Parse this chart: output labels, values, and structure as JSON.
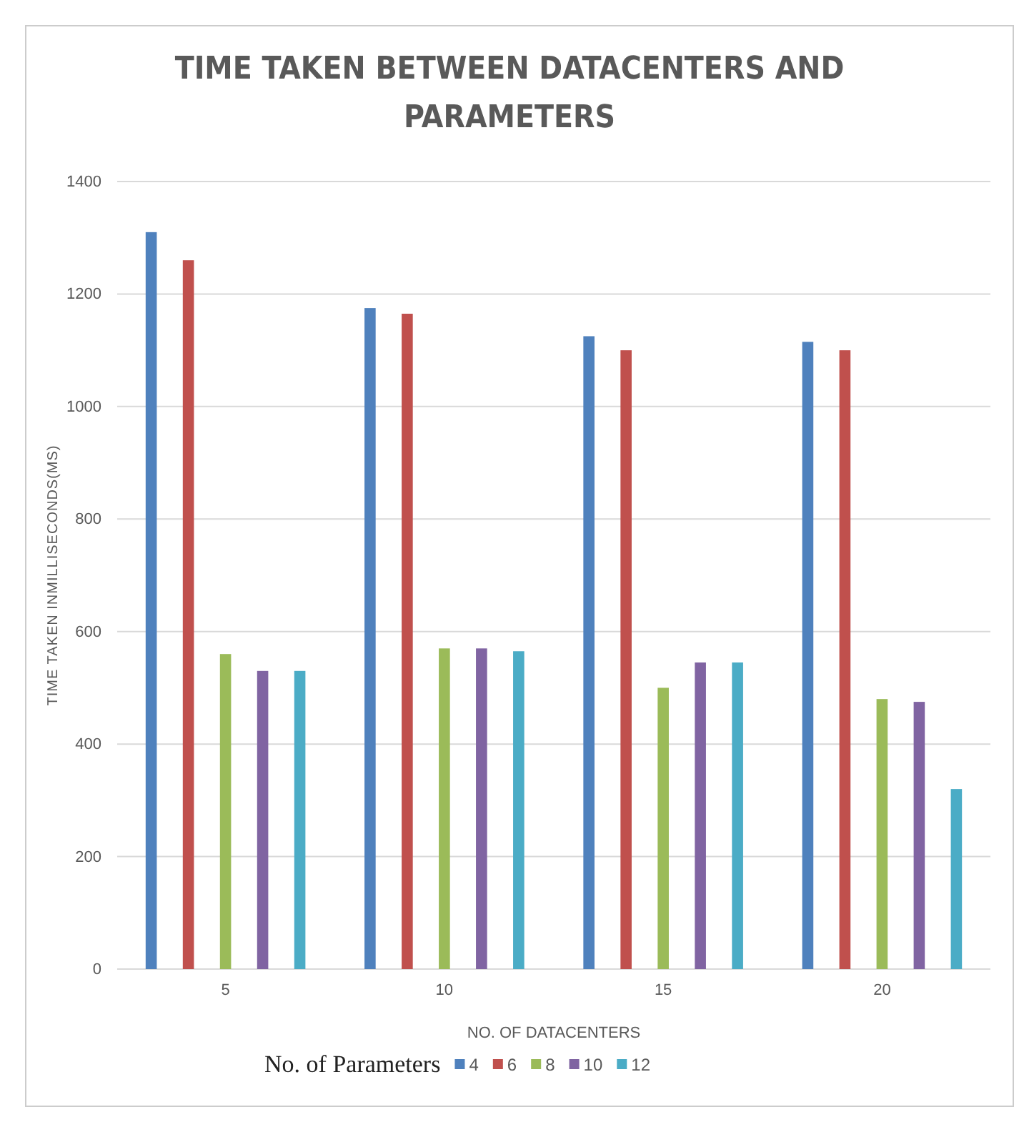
{
  "chart_data": {
    "type": "bar",
    "title": "TIME TAKEN BETWEEN DATACENTERS AND PARAMETERS",
    "xlabel": "NO. OF DATACENTERS",
    "ylabel": "TIME TAKEN INMILLISECONDS(MS)",
    "legend_title": "No. of Parameters",
    "categories": [
      "5",
      "10",
      "15",
      "20"
    ],
    "series": [
      {
        "name": "4",
        "color": "#4f81bd",
        "values": [
          1310,
          1175,
          1125,
          1115
        ]
      },
      {
        "name": "6",
        "color": "#c0504d",
        "values": [
          1260,
          1165,
          1100,
          1100
        ]
      },
      {
        "name": "8",
        "color": "#9bbb59",
        "values": [
          560,
          570,
          500,
          480
        ]
      },
      {
        "name": "10",
        "color": "#8064a2",
        "values": [
          530,
          570,
          545,
          475
        ]
      },
      {
        "name": "12",
        "color": "#4bacc6",
        "values": [
          530,
          565,
          545,
          320
        ]
      }
    ],
    "ylim": [
      0,
      1400
    ],
    "yticks": [
      0,
      200,
      400,
      600,
      800,
      1000,
      1200,
      1400
    ],
    "grid": "y",
    "legend": "bottom"
  }
}
